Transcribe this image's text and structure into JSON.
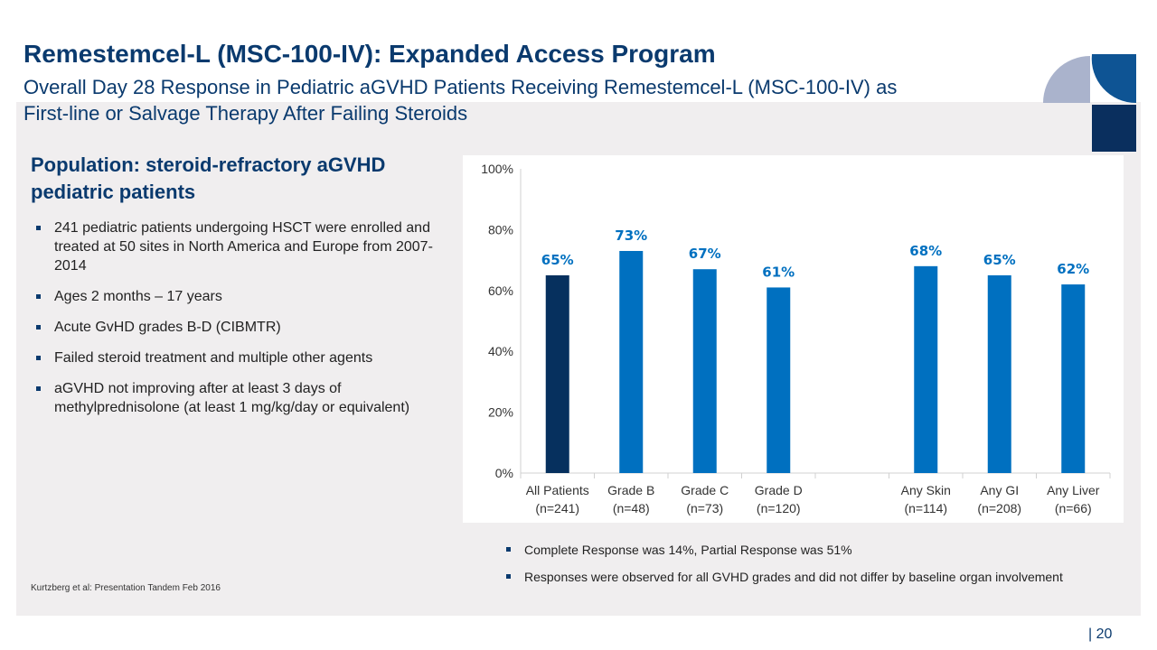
{
  "header": {
    "title": "Remestemcel-L (MSC-100-IV): Expanded Access Program",
    "subtitle": "Overall Day 28 Response in Pediatric aGVHD Patients Receiving Remestemcel-L (MSC-100-IV) as First-line or Salvage Therapy After Failing Steroids"
  },
  "left": {
    "heading": "Population: steroid-refractory aGVHD pediatric patients",
    "bullets": [
      "241 pediatric patients undergoing HSCT were enrolled and treated at 50 sites in North America and Europe from 2007-2014",
      "Ages 2 months – 17 years",
      "Acute GvHD grades B-D (CIBMTR)",
      "Failed steroid treatment and multiple other agents",
      "aGVHD not improving after at least 3 days of methylprednisolone (at least 1 mg/kg/day or equivalent)"
    ],
    "citation": "Kurtzberg et al:  Presentation Tandem Feb 2016"
  },
  "notes": [
    "Complete Response was 14%, Partial Response was 51%",
    "Responses were observed for all GVHD grades and did not differ by baseline organ involvement"
  ],
  "page_number": "| 20",
  "colors": {
    "brand_dark": "#0a3a6e",
    "bar_dark": "#06305e",
    "bar": "#0070c0",
    "label": "#0070c0"
  },
  "chart_data": {
    "type": "bar",
    "title": "",
    "xlabel": "",
    "ylabel": "",
    "ylim": [
      0,
      100
    ],
    "grid": false,
    "yticks": [
      "0%",
      "20%",
      "40%",
      "60%",
      "80%",
      "100%"
    ],
    "categories": [
      [
        "All Patients",
        "(n=241)"
      ],
      [
        "Grade B",
        "(n=48)"
      ],
      [
        "Grade C",
        "(n=73)"
      ],
      [
        "Grade D",
        "(n=120)"
      ],
      [
        "",
        ""
      ],
      [
        "Any Skin",
        "(n=114)"
      ],
      [
        "Any GI",
        "(n=208)"
      ],
      [
        "Any Liver",
        "(n=66)"
      ]
    ],
    "values": [
      65,
      73,
      67,
      61,
      null,
      68,
      65,
      62
    ],
    "data_labels": [
      "65%",
      "73%",
      "67%",
      "61%",
      "",
      "68%",
      "65%",
      "62%"
    ]
  }
}
